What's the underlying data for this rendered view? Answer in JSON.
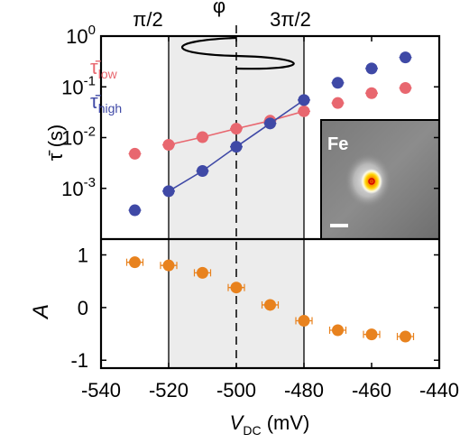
{
  "colors": {
    "low": "#e8676f",
    "high": "#3f49a6",
    "amplitude": "#e8821e",
    "shade": "#ececec"
  },
  "labels": {
    "phi": "φ",
    "phase_left": "π/2",
    "phase_right": "3π/2",
    "inset_label": "Fe",
    "legend_low_sub": "low",
    "legend_high_sub": "high"
  },
  "chart_data": [
    {
      "type": "scatter",
      "panel": "top",
      "xlim": [
        -540,
        -440
      ],
      "ylim_log10": [
        -4,
        0
      ],
      "yscale": "log",
      "ylabel": "τ̄ (s)",
      "yticks": [
        {
          "sup": "0",
          "value": 1
        },
        {
          "sup": "-1",
          "value": 0.1
        },
        {
          "sup": "-2",
          "value": 0.01
        },
        {
          "sup": "-3",
          "value": 0.001
        }
      ],
      "series": [
        {
          "name": "τ̄low",
          "x": [
            -530,
            -520,
            -510,
            -500,
            -490,
            -480,
            -470,
            -460,
            -450
          ],
          "y": [
            0.0048,
            0.0072,
            0.0102,
            0.015,
            0.0215,
            0.033,
            0.048,
            0.075,
            0.095
          ]
        },
        {
          "name": "τ̄high",
          "x": [
            -530,
            -520,
            -510,
            -500,
            -490,
            -480,
            -470,
            -460,
            -450
          ],
          "y": [
            0.00037,
            0.00088,
            0.0022,
            0.0066,
            0.019,
            0.055,
            0.12,
            0.23,
            0.38
          ]
        }
      ],
      "fit_range": [
        -520,
        -480
      ],
      "shaded_range": [
        -520,
        -480
      ],
      "dashed_line_x": -500
    },
    {
      "type": "scatter",
      "panel": "bottom",
      "xlim": [
        -540,
        -440
      ],
      "ylim": [
        -1.15,
        1.3
      ],
      "ylabel": "A",
      "xlabel": "V",
      "xlabel_sub": "DC",
      "xlabel_unit": " (mV)",
      "xticks": [
        "-540",
        "-520",
        "-500",
        "-480",
        "-460",
        "-440"
      ],
      "yticks": [
        "1",
        "0",
        "-1"
      ],
      "series": [
        {
          "x": [
            -530,
            -520,
            -510,
            -500,
            -490,
            -480,
            -470,
            -460,
            -450
          ],
          "y": [
            0.86,
            0.8,
            0.66,
            0.38,
            0.05,
            -0.25,
            -0.43,
            -0.51,
            -0.55
          ]
        }
      ]
    }
  ]
}
